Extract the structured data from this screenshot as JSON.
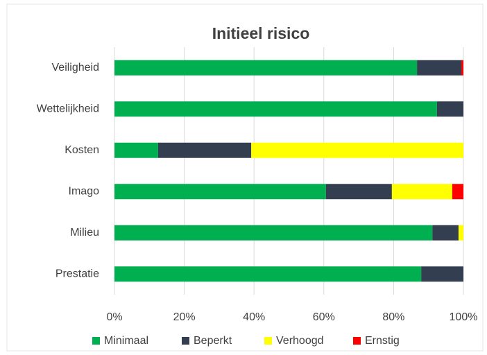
{
  "chart_data": {
    "type": "stacked-bar-horizontal",
    "title": "Initieel risico",
    "categories": [
      "Veiligheid",
      "Wettelijkheid",
      "Kosten",
      "Imago",
      "Milieu",
      "Prestatie"
    ],
    "series": [
      {
        "name": "Minimaal",
        "color": "#00b050",
        "values": [
          86.7,
          92.4,
          12.5,
          60.6,
          91.1,
          87.9
        ]
      },
      {
        "name": "Beperkt",
        "color": "#333f50",
        "values": [
          12.7,
          7.6,
          26.7,
          18.9,
          7.5,
          12.1
        ]
      },
      {
        "name": "Verhoogd",
        "color": "#ffff00",
        "values": [
          0,
          0,
          60.8,
          17.3,
          1.4,
          0
        ]
      },
      {
        "name": "Ernstig",
        "color": "#ff0000",
        "values": [
          0.6,
          0,
          0,
          3.2,
          0,
          0
        ]
      }
    ],
    "xlim": [
      0,
      100
    ],
    "xticks": [
      {
        "value": 0,
        "label": "0%"
      },
      {
        "value": 20,
        "label": "20%"
      },
      {
        "value": 40,
        "label": "40%"
      },
      {
        "value": 60,
        "label": "60%"
      },
      {
        "value": 80,
        "label": "80%"
      },
      {
        "value": 100,
        "label": "100%"
      }
    ],
    "grid": true,
    "legend": "bottom"
  }
}
